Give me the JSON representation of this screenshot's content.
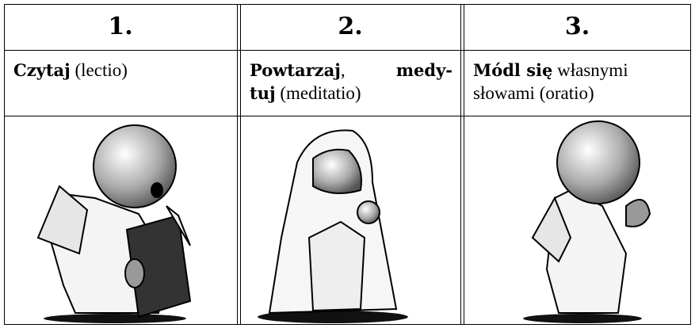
{
  "table": {
    "headers": [
      "1.",
      "2.",
      "3."
    ],
    "rows": [
      [
        [
          {
            "text": "Czytaj",
            "bold": true
          },
          {
            "text": "(lectio)",
            "bold": false
          }
        ],
        [
          {
            "text": "Powtarzaj",
            "bold": true
          },
          {
            "text": ",",
            "bold": false
          },
          {
            "text": "medy-",
            "bold": true
          },
          {
            "text": "tuj",
            "bold": true
          },
          {
            "text": "(meditatio)",
            "bold": false
          }
        ],
        [
          {
            "text": "Módl się",
            "bold": true
          },
          {
            "text": "własnymi",
            "bold": false
          },
          {
            "text": "słowami (oratio)",
            "bold": false
          }
        ]
      ]
    ]
  }
}
